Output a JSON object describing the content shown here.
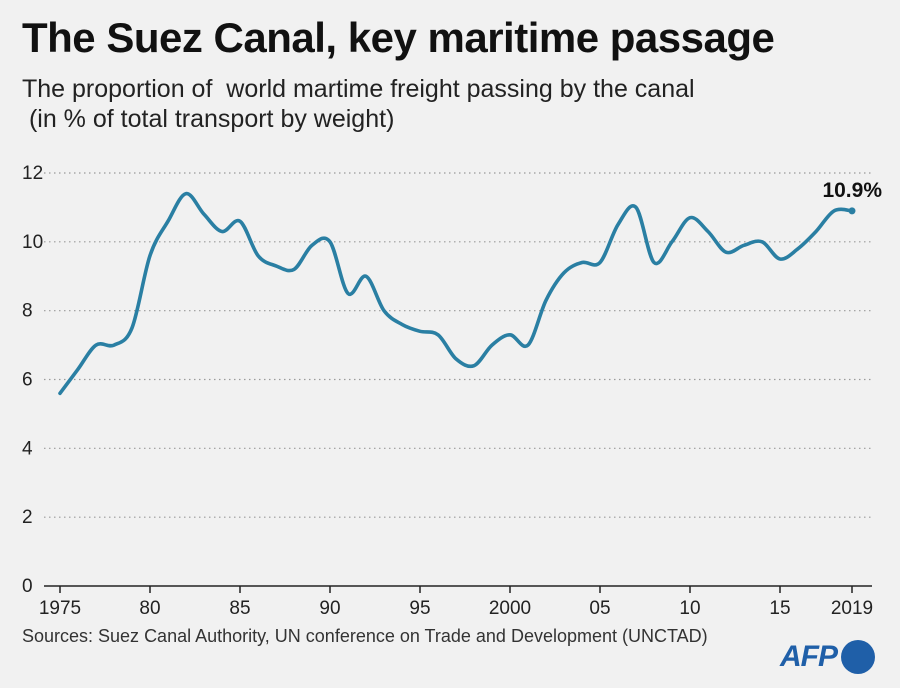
{
  "title": "The Suez Canal, key maritime passage",
  "subtitle_line1": "The proportion of  world martime freight passing by the canal",
  "subtitle_line2": " (in % of total transport by weight)",
  "source": "Sources: Suez Canal Authority, UN conference on Trade and Development (UNCTAD)",
  "logo_text": "AFP",
  "colors": {
    "line": "#2a7fa3",
    "grid": "#9a9a9a",
    "axis": "#222222",
    "logo": "#1f5fa8"
  },
  "chart_data": {
    "type": "line",
    "xlim": [
      1975,
      2019
    ],
    "ylim": [
      0,
      12
    ],
    "grid": true,
    "x_tick_values": [
      1975,
      1980,
      1985,
      1990,
      1995,
      2000,
      2005,
      2010,
      2015,
      2019
    ],
    "x_tick_labels": [
      "1975",
      "80",
      "85",
      "90",
      "95",
      "2000",
      "05",
      "10",
      "15",
      "2019"
    ],
    "y_tick_values": [
      0,
      2,
      4,
      6,
      8,
      10,
      12
    ],
    "y_tick_labels": [
      "0",
      "2",
      "4",
      "6",
      "8",
      "10",
      "12"
    ],
    "annotation": {
      "text": "10.9%",
      "x": 2019,
      "y": 10.9
    },
    "series": [
      {
        "x": [
          1975,
          1976,
          1977,
          1978,
          1979,
          1980,
          1981,
          1982,
          1983,
          1984,
          1985,
          1986,
          1987,
          1988,
          1989,
          1990,
          1991,
          1992,
          1993,
          1994,
          1995,
          1996,
          1997,
          1998,
          1999,
          2000,
          2001,
          2002,
          2003,
          2004,
          2005,
          2006,
          2007,
          2008,
          2009,
          2010,
          2011,
          2012,
          2013,
          2014,
          2015,
          2016,
          2017,
          2018,
          2019
        ],
        "y": [
          5.6,
          6.3,
          7.0,
          7.0,
          7.5,
          9.6,
          10.6,
          11.4,
          10.8,
          10.3,
          10.6,
          9.6,
          9.3,
          9.2,
          9.9,
          10.0,
          8.5,
          9.0,
          8.0,
          7.6,
          7.4,
          7.3,
          6.6,
          6.4,
          7.0,
          7.3,
          7.0,
          8.3,
          9.1,
          9.4,
          9.4,
          10.5,
          11.0,
          9.4,
          10.0,
          10.7,
          10.3,
          9.7,
          9.9,
          10.0,
          9.5,
          9.8,
          10.3,
          10.9,
          10.9
        ]
      }
    ]
  }
}
